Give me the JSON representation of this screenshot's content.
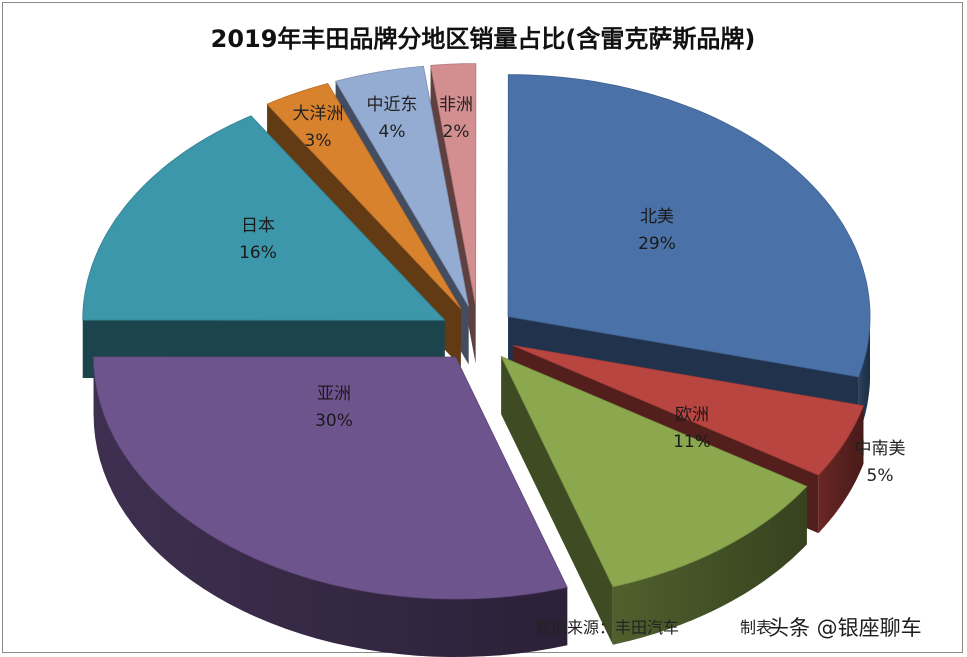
{
  "chart_data": {
    "type": "pie",
    "title": "2019年丰田品牌分地区销量占比(含雷克萨斯品牌)",
    "slices": [
      {
        "label": "北美",
        "value": 29,
        "display": "29%",
        "color": "#4A72A8",
        "label_placement": "inside"
      },
      {
        "label": "中南美",
        "value": 5,
        "display": "5%",
        "color": "#B84540",
        "label_placement": "outside"
      },
      {
        "label": "欧洲",
        "value": 11,
        "display": "11%",
        "color": "#8CA84E",
        "label_placement": "inside"
      },
      {
        "label": "亚洲",
        "value": 30,
        "display": "30%",
        "color": "#6E548D",
        "label_placement": "inside"
      },
      {
        "label": "日本",
        "value": 16,
        "display": "16%",
        "color": "#3C97AB",
        "label_placement": "inside"
      },
      {
        "label": "大洋洲",
        "value": 3,
        "display": "3%",
        "color": "#D9822E",
        "label_placement": "outside"
      },
      {
        "label": "中近东",
        "value": 4,
        "display": "4%",
        "color": "#94ABD2",
        "label_placement": "outside"
      },
      {
        "label": "非洲",
        "value": 2,
        "display": "2%",
        "color": "#D38F90",
        "label_placement": "outside"
      }
    ]
  },
  "footer": {
    "source": "数据来源：丰田汽车",
    "maker": "制表"
  },
  "watermark": "头条 @银座聊车"
}
